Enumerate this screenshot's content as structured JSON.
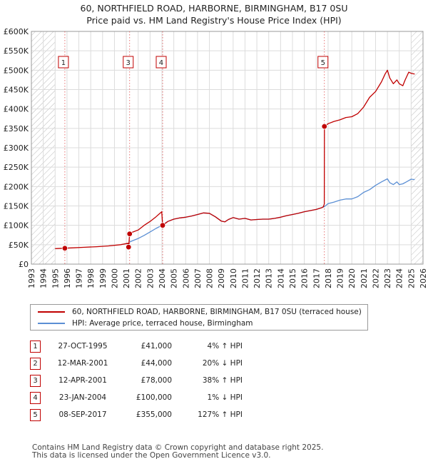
{
  "title_line1": "60, NORTHFIELD ROAD, HARBORNE, BIRMINGHAM, B17 0SU",
  "title_line2": "Price paid vs. HM Land Registry's House Price Index (HPI)",
  "chart_data": {
    "type": "line",
    "title": "60, NORTHFIELD ROAD, HARBORNE, BIRMINGHAM, B17 0SU — Price paid vs. HM Land Registry's House Price Index (HPI)",
    "xlabel": "",
    "ylabel": "",
    "xlim": [
      1993,
      2026
    ],
    "ylim": [
      0,
      600000
    ],
    "x_ticks": [
      1993,
      1994,
      1995,
      1996,
      1997,
      1998,
      1999,
      2000,
      2001,
      2002,
      2003,
      2004,
      2005,
      2006,
      2007,
      2008,
      2009,
      2010,
      2011,
      2012,
      2013,
      2014,
      2015,
      2016,
      2017,
      2018,
      2019,
      2020,
      2021,
      2022,
      2023,
      2024,
      2025,
      2026
    ],
    "y_ticks": [
      {
        "value": 0,
        "label": "£0"
      },
      {
        "value": 50000,
        "label": "£50K"
      },
      {
        "value": 100000,
        "label": "£100K"
      },
      {
        "value": 150000,
        "label": "£150K"
      },
      {
        "value": 200000,
        "label": "£200K"
      },
      {
        "value": 250000,
        "label": "£250K"
      },
      {
        "value": 300000,
        "label": "£300K"
      },
      {
        "value": 350000,
        "label": "£350K"
      },
      {
        "value": 400000,
        "label": "£400K"
      },
      {
        "value": 450000,
        "label": "£450K"
      },
      {
        "value": 500000,
        "label": "£500K"
      },
      {
        "value": 550000,
        "label": "£550K"
      },
      {
        "value": 600000,
        "label": "£600K"
      }
    ],
    "hatched_ranges": [
      [
        1993,
        1995.0
      ],
      [
        2025.0,
        2026
      ]
    ],
    "series": [
      {
        "name": "60, NORTHFIELD ROAD, HARBORNE, BIRMINGHAM, B17 0SU (terraced house)",
        "color": "#c00000",
        "x": [
          1995.0,
          1995.82,
          1996.5,
          1997.5,
          1998.5,
          1999.5,
          2000.5,
          2001.19,
          2001.2,
          2001.28,
          2001.5,
          2002.0,
          2002.5,
          2003.0,
          2003.5,
          2003.98,
          2004.06,
          2004.5,
          2005.0,
          2005.5,
          2006.0,
          2006.5,
          2007.0,
          2007.5,
          2008.0,
          2008.5,
          2009.0,
          2009.3,
          2009.6,
          2010.0,
          2010.5,
          2011.0,
          2011.5,
          2012.0,
          2012.5,
          2013.0,
          2013.5,
          2014.0,
          2014.5,
          2015.0,
          2015.5,
          2016.0,
          2016.5,
          2017.0,
          2017.5,
          2017.6,
          2017.68,
          2017.69,
          2018.0,
          2018.5,
          2019.0,
          2019.5,
          2020.0,
          2020.5,
          2021.0,
          2021.5,
          2022.0,
          2022.5,
          2022.8,
          2023.0,
          2023.2,
          2023.5,
          2023.8,
          2024.0,
          2024.3,
          2024.5,
          2024.8,
          2025.0,
          2025.3
        ],
        "values": [
          40000,
          41000,
          42000,
          43500,
          45000,
          47000,
          50000,
          54000,
          44000,
          78000,
          82000,
          88000,
          100000,
          110000,
          122000,
          135000,
          100000,
          110000,
          116000,
          119000,
          121000,
          124000,
          128000,
          132000,
          131000,
          122000,
          111000,
          109000,
          115000,
          120000,
          116000,
          118000,
          114000,
          115000,
          116000,
          116000,
          118000,
          121000,
          125000,
          128000,
          131000,
          135000,
          138000,
          141000,
          146000,
          148000,
          155000,
          355000,
          362000,
          368000,
          372000,
          378000,
          380000,
          388000,
          405000,
          430000,
          445000,
          470000,
          490000,
          500000,
          480000,
          465000,
          475000,
          465000,
          460000,
          475000,
          495000,
          492000,
          490000
        ]
      },
      {
        "name": "HPI: Average price, terraced house, Birmingham",
        "color": "#5b8fd4",
        "x": [
          2001.28,
          2001.5,
          2002.0,
          2002.5,
          2003.0,
          2003.5,
          2004.0,
          2004.5,
          2005.0,
          2005.5,
          2006.0,
          2006.5,
          2007.0,
          2007.5,
          2008.0,
          2008.5,
          2009.0,
          2009.3,
          2009.6,
          2010.0,
          2010.5,
          2011.0,
          2011.5,
          2012.0,
          2012.5,
          2013.0,
          2013.5,
          2014.0,
          2014.5,
          2015.0,
          2015.5,
          2016.0,
          2016.5,
          2017.0,
          2017.5,
          2017.68,
          2018.0,
          2018.5,
          2019.0,
          2019.5,
          2020.0,
          2020.5,
          2021.0,
          2021.5,
          2022.0,
          2022.5,
          2023.0,
          2023.2,
          2023.5,
          2023.8,
          2024.0,
          2024.3,
          2024.6,
          2025.0,
          2025.3
        ],
        "values": [
          57000,
          60000,
          66000,
          74000,
          83000,
          92000,
          100000,
          110000,
          116000,
          119000,
          121000,
          124000,
          128000,
          132000,
          131000,
          122000,
          111000,
          109000,
          115000,
          120000,
          116000,
          118000,
          114000,
          115000,
          116000,
          116000,
          118000,
          121000,
          125000,
          128000,
          131000,
          135000,
          138000,
          141000,
          146000,
          148000,
          156000,
          160000,
          165000,
          168000,
          168000,
          174000,
          185000,
          192000,
          203000,
          212000,
          220000,
          210000,
          205000,
          212000,
          205000,
          207000,
          212000,
          219000,
          218000
        ]
      }
    ],
    "sales": [
      {
        "id": "1",
        "x": 1995.82,
        "price": 41000
      },
      {
        "id": "2",
        "x": 2001.19,
        "price": 44000
      },
      {
        "id": "3",
        "x": 2001.28,
        "price": 78000
      },
      {
        "id": "4",
        "x": 2004.06,
        "price": 100000
      },
      {
        "id": "5",
        "x": 2017.69,
        "price": 355000
      }
    ]
  },
  "legend": {
    "property": "60, NORTHFIELD ROAD, HARBORNE, BIRMINGHAM, B17 0SU (terraced house)",
    "hpi": "HPI: Average price, terraced house, Birmingham"
  },
  "transactions": [
    {
      "id": "1",
      "date": "27-OCT-1995",
      "price": "£41,000",
      "hpi": "4% ↑ HPI"
    },
    {
      "id": "2",
      "date": "12-MAR-2001",
      "price": "£44,000",
      "hpi": "20% ↓ HPI"
    },
    {
      "id": "3",
      "date": "12-APR-2001",
      "price": "£78,000",
      "hpi": "38% ↑ HPI"
    },
    {
      "id": "4",
      "date": "23-JAN-2004",
      "price": "£100,000",
      "hpi": "1% ↓ HPI"
    },
    {
      "id": "5",
      "date": "08-SEP-2017",
      "price": "£355,000",
      "hpi": "127% ↑ HPI"
    }
  ],
  "footer_line1": "Contains HM Land Registry data © Crown copyright and database right 2025.",
  "footer_line2": "This data is licensed under the Open Government Licence v3.0.",
  "colors": {
    "property": "#c00000",
    "hpi": "#5b8fd4",
    "grid": "#dcdcdc",
    "plot_bg": "#ffffff",
    "hatch": "#bbbbbb"
  }
}
